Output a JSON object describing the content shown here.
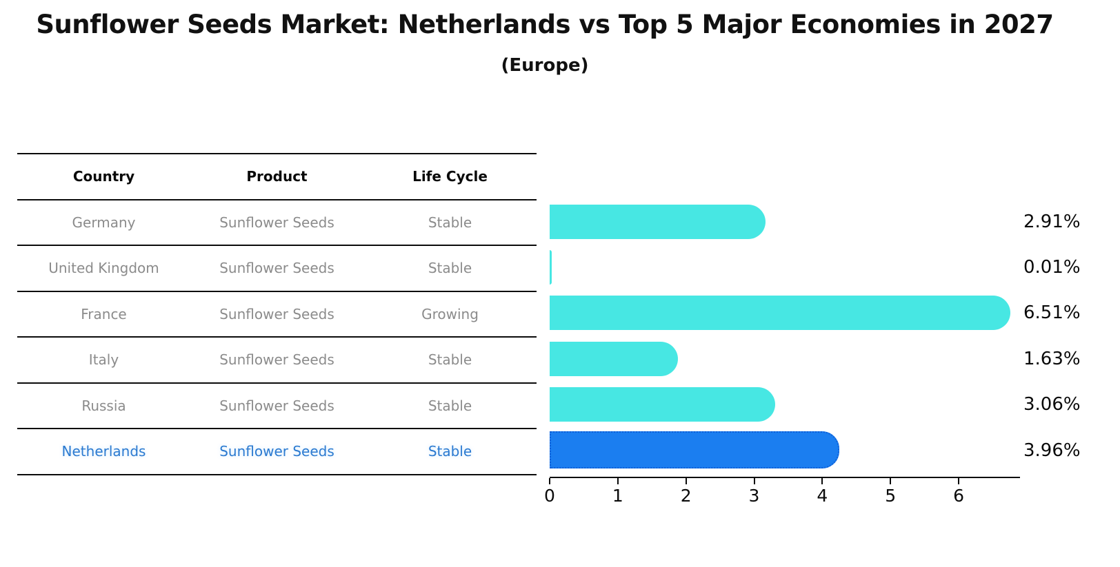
{
  "title": "Sunflower Seeds Market: Netherlands vs Top 5 Major Economies in 2027",
  "subtitle": "(Europe)",
  "table": {
    "headers": [
      "Country",
      "Product",
      "Life Cycle"
    ],
    "rows": [
      {
        "country": "Germany",
        "product": "Sunflower Seeds",
        "life_cycle": "Stable",
        "highlight": false
      },
      {
        "country": "United Kingdom",
        "product": "Sunflower Seeds",
        "life_cycle": "Stable",
        "highlight": false
      },
      {
        "country": "France",
        "product": "Sunflower Seeds",
        "life_cycle": "Growing",
        "highlight": false
      },
      {
        "country": "Italy",
        "product": "Sunflower Seeds",
        "life_cycle": "Stable",
        "highlight": false
      },
      {
        "country": "Russia",
        "product": "Sunflower Seeds",
        "life_cycle": "Stable",
        "highlight": false
      },
      {
        "country": "Netherlands",
        "product": "Sunflower Seeds",
        "life_cycle": "Stable",
        "highlight": true
      }
    ]
  },
  "chart_data": {
    "type": "bar",
    "orientation": "horizontal",
    "title": "Sunflower Seeds Market: Netherlands vs Top 5 Major Economies in 2027 (Europe)",
    "categories": [
      "Germany",
      "United Kingdom",
      "France",
      "Italy",
      "Russia",
      "Netherlands"
    ],
    "values": [
      2.91,
      0.01,
      6.51,
      1.63,
      3.06,
      3.96
    ],
    "value_labels": [
      "2.91%",
      "0.01%",
      "6.51%",
      "1.63%",
      "3.06%",
      "3.96%"
    ],
    "highlight_index": 5,
    "x_ticks": [
      0,
      1,
      2,
      3,
      4,
      5,
      6
    ],
    "xlim": [
      0,
      6.88
    ],
    "xlabel": "",
    "ylabel": "",
    "grid": false,
    "legend": false,
    "colors": {
      "bar": "#47E7E3",
      "highlight_bar": "#1B7EF0",
      "highlight_border": "#0F5FD7",
      "highlight_text": "#2B7AD0",
      "row_text": "#8B8B8B",
      "axis": "#0A0A0A"
    }
  }
}
